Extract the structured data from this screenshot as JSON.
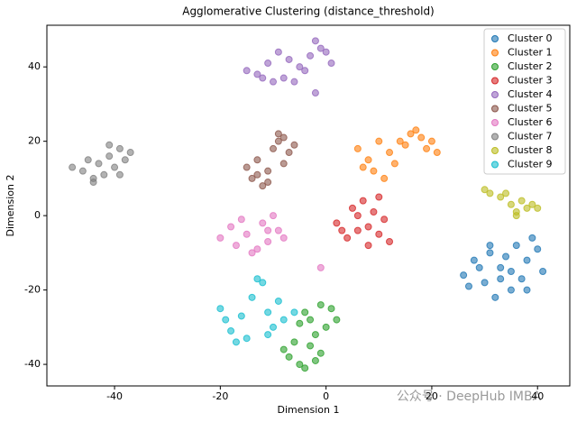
{
  "chart_data": {
    "type": "scatter",
    "title": "Agglomerative Clustering (distance_threshold)",
    "x_label": "Dimension 1",
    "y_label": "Dimension 2",
    "xlim": [
      -52.8,
      46.1
    ],
    "ylim": [
      -45.8,
      51.2
    ],
    "xticks": [
      -40,
      -20,
      0,
      20,
      40
    ],
    "yticks": [
      -40,
      -20,
      0,
      20,
      40
    ],
    "legend": "upper right",
    "watermark": "公众号 · DeepHub IMBA",
    "series": [
      {
        "name": "Cluster 0",
        "color": "#1f77b4",
        "x": [
          26,
          28,
          30,
          31,
          33,
          35,
          36,
          38,
          40,
          41,
          27,
          32,
          34,
          37,
          39,
          29,
          35,
          31,
          38,
          33
        ],
        "values": [
          -16,
          -12,
          -18,
          -10,
          -14,
          -20,
          -8,
          -12,
          -9,
          -15,
          -19,
          -22,
          -11,
          -17,
          -6,
          -14,
          -15,
          -8,
          -20,
          -17
        ]
      },
      {
        "name": "Cluster 1",
        "color": "#ff7f0e",
        "x": [
          6,
          8,
          9,
          10,
          11,
          12,
          7,
          13,
          15,
          16,
          18,
          19,
          20,
          21,
          17,
          14
        ],
        "values": [
          18,
          15,
          12,
          20,
          10,
          17,
          13,
          14,
          19,
          22,
          21,
          18,
          20,
          17,
          23,
          20
        ]
      },
      {
        "name": "Cluster 2",
        "color": "#2ca02c",
        "x": [
          -4,
          -3,
          -1,
          0,
          1,
          2,
          -2,
          -5,
          -8,
          -7,
          -5,
          -3,
          -1,
          -6,
          -4,
          -2
        ],
        "values": [
          -26,
          -28,
          -24,
          -30,
          -25,
          -28,
          -32,
          -29,
          -36,
          -38,
          -40,
          -35,
          -37,
          -34,
          -41,
          -39
        ]
      },
      {
        "name": "Cluster 3",
        "color": "#d62728",
        "x": [
          2,
          4,
          6,
          8,
          10,
          11,
          5,
          7,
          9,
          12,
          3,
          6,
          10,
          8
        ],
        "values": [
          -2,
          -6,
          -4,
          -8,
          -5,
          -1,
          2,
          4,
          1,
          -7,
          -4,
          0,
          5,
          -3
        ]
      },
      {
        "name": "Cluster 4",
        "color": "#9467bd",
        "x": [
          -15,
          -13,
          -11,
          -9,
          -7,
          -5,
          -3,
          -1,
          1,
          -12,
          -8,
          -4,
          -2,
          0,
          -10,
          -6,
          -2
        ],
        "values": [
          39,
          38,
          41,
          44,
          42,
          40,
          43,
          45,
          41,
          37,
          37,
          39,
          47,
          44,
          36,
          36,
          33
        ]
      },
      {
        "name": "Cluster 5",
        "color": "#8c564b",
        "x": [
          -15,
          -14,
          -13,
          -12,
          -11,
          -10,
          -9,
          -8,
          -7,
          -6,
          -13,
          -11,
          -9,
          -8
        ],
        "values": [
          13,
          10,
          15,
          8,
          12,
          18,
          20,
          14,
          17,
          19,
          11,
          9,
          22,
          21
        ]
      },
      {
        "name": "Cluster 6",
        "color": "#e377c2",
        "x": [
          -20,
          -18,
          -17,
          -15,
          -14,
          -12,
          -11,
          -10,
          -9,
          -8,
          -16,
          -13,
          -11,
          -1
        ],
        "values": [
          -6,
          -3,
          -8,
          -5,
          -10,
          -2,
          -7,
          0,
          -4,
          -6,
          -1,
          -9,
          -4,
          -14
        ]
      },
      {
        "name": "Cluster 7",
        "color": "#7f7f7f",
        "x": [
          -48,
          -46,
          -45,
          -44,
          -43,
          -42,
          -41,
          -40,
          -39,
          -38,
          -37,
          -44,
          -41,
          -39
        ],
        "values": [
          13,
          12,
          15,
          10,
          14,
          11,
          16,
          13,
          18,
          15,
          17,
          9,
          19,
          11
        ]
      },
      {
        "name": "Cluster 8",
        "color": "#bcbd22",
        "x": [
          30,
          31,
          33,
          34,
          35,
          36,
          37,
          38,
          39,
          40,
          36
        ],
        "values": [
          7,
          6,
          5,
          6,
          3,
          1,
          4,
          2,
          3,
          2,
          0
        ]
      },
      {
        "name": "Cluster 9",
        "color": "#17becf",
        "x": [
          -20,
          -19,
          -18,
          -16,
          -15,
          -14,
          -12,
          -11,
          -10,
          -9,
          -8,
          -6,
          -17,
          -13,
          -11
        ],
        "values": [
          -25,
          -28,
          -31,
          -27,
          -33,
          -22,
          -18,
          -26,
          -30,
          -23,
          -28,
          -26,
          -34,
          -17,
          -32
        ]
      }
    ]
  }
}
